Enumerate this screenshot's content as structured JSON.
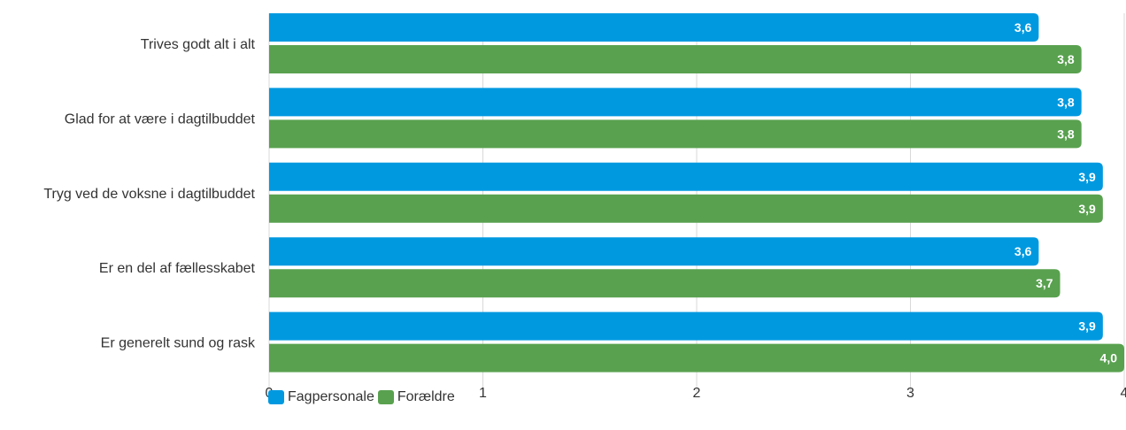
{
  "chart_data": {
    "type": "bar",
    "orientation": "horizontal",
    "categories": [
      "Trives godt alt i alt",
      "Glad for at være i dagtilbuddet",
      "Tryg ved de voksne i dagtilbuddet",
      "Er en del af fællesskabet",
      "Er generelt sund og rask"
    ],
    "series": [
      {
        "name": "Fagpersonale",
        "color": "#0099e0",
        "values": [
          3.6,
          3.8,
          3.9,
          3.6,
          3.9
        ],
        "labels": [
          "3,6",
          "3,8",
          "3,9",
          "3,6",
          "3,9"
        ]
      },
      {
        "name": "Forældre",
        "color": "#59a14f",
        "values": [
          3.8,
          3.8,
          3.9,
          3.7,
          4.0
        ],
        "labels": [
          "3,8",
          "3,8",
          "3,9",
          "3,7",
          "4,0"
        ]
      }
    ],
    "xlim": [
      0,
      4
    ],
    "xticks": [
      "0",
      "1",
      "2",
      "3",
      "4"
    ],
    "grid": true,
    "legend": "bottom-left",
    "title": "",
    "xlabel": "",
    "ylabel": ""
  }
}
